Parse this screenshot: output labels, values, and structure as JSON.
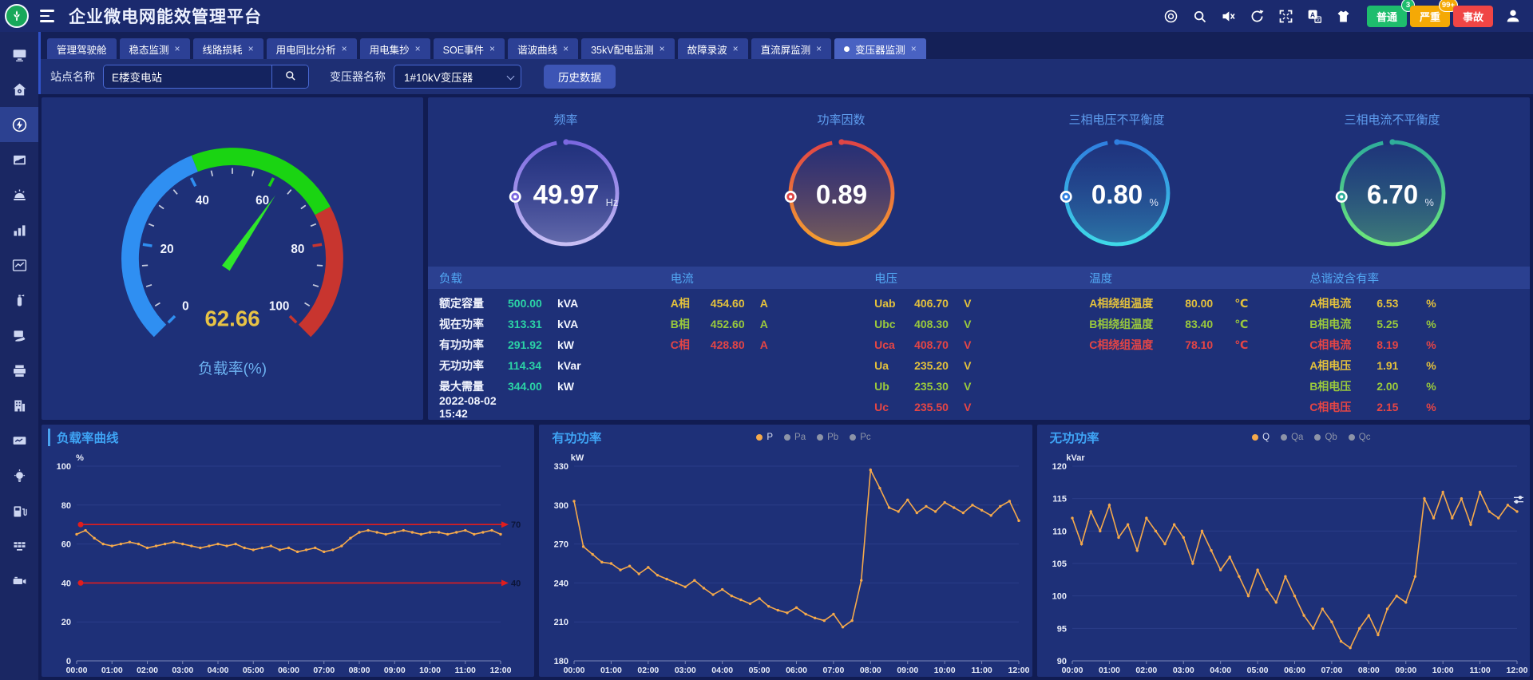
{
  "header": {
    "title": "企业微电网能效管理平台",
    "icons": [
      "at-circle",
      "search",
      "mute",
      "refresh",
      "fullscreen",
      "translate",
      "shirt"
    ],
    "status_buttons": [
      {
        "label": "普通",
        "badge": "3",
        "color": "#1ebd6d",
        "badge_color": "#1ebd6d"
      },
      {
        "label": "严重",
        "badge": "99+",
        "color": "#f5a905",
        "badge_color": "#f5a905"
      },
      {
        "label": "事故",
        "badge": "",
        "color": "#f04545",
        "badge_color": ""
      }
    ]
  },
  "ui": {
    "close_glyph": "×"
  },
  "sidebar": {
    "active_index": 2,
    "items": [
      "screen",
      "home",
      "energy",
      "report",
      "alarm",
      "bar-chart",
      "trend",
      "extinguisher",
      "card",
      "printer",
      "building",
      "monitor-trend",
      "bulb",
      "charger",
      "grid",
      "camera"
    ]
  },
  "tabs": [
    {
      "label": "管理驾驶舱",
      "closable": false,
      "active": false
    },
    {
      "label": "稳态监测",
      "closable": true,
      "active": false
    },
    {
      "label": "线路损耗",
      "closable": true,
      "active": false
    },
    {
      "label": "用电同比分析",
      "closable": true,
      "active": false
    },
    {
      "label": "用电集抄",
      "closable": true,
      "active": false
    },
    {
      "label": "SOE事件",
      "closable": true,
      "active": false
    },
    {
      "label": "谐波曲线",
      "closable": true,
      "active": false
    },
    {
      "label": "35kV配电监测",
      "closable": true,
      "active": false
    },
    {
      "label": "故障录波",
      "closable": true,
      "active": false
    },
    {
      "label": "直流屏监测",
      "closable": true,
      "active": false
    },
    {
      "label": "变压器监测",
      "closable": true,
      "active": true
    }
  ],
  "filters": {
    "site_label": "站点名称",
    "site_value": "E楼变电站",
    "transformer_label": "变压器名称",
    "transformer_value": "1#10kV变压器",
    "history_button": "历史数据"
  },
  "load_gauge": {
    "value": 62.66,
    "display_value": "62.66",
    "label": "负载率(%)",
    "min": 0,
    "max": 100,
    "ticks": [
      0,
      20,
      40,
      60,
      80,
      100
    ],
    "segments": [
      {
        "to": 42,
        "color": "#2f8ff2"
      },
      {
        "to": 73,
        "color": "#1ad412"
      },
      {
        "to": 100,
        "color": "#c8352f"
      }
    ],
    "needle_color": "#2ee62a",
    "value_color": "#e8c345"
  },
  "ring_gauges": [
    {
      "title": "频率",
      "value": "49.97",
      "unit": "Hz",
      "color1": "#7b68e0",
      "color2": "#c8bff5"
    },
    {
      "title": "功率因数",
      "value": "0.89",
      "unit": "",
      "color1": "#e04545",
      "color2": "#f5a030"
    },
    {
      "title": "三相电压不平衡度",
      "value": "0.80",
      "unit": "%",
      "color1": "#2f7fe0",
      "color2": "#3fd9e8"
    },
    {
      "title": "三相电流不平衡度",
      "value": "6.70",
      "unit": "%",
      "color1": "#2fae9a",
      "color2": "#6ee87a"
    }
  ],
  "table": {
    "headers": [
      "负载",
      "电流",
      "电压",
      "温度",
      "总谐波含有率"
    ],
    "columns": [
      {
        "rows": [
          {
            "label": "额定容量",
            "value": "500.00",
            "unit": "kVA",
            "tone": "teal"
          },
          {
            "label": "视在功率",
            "value": "313.31",
            "unit": "kVA",
            "tone": "teal"
          },
          {
            "label": "有功功率",
            "value": "291.92",
            "unit": "kW",
            "tone": "teal"
          },
          {
            "label": "无功功率",
            "value": "114.34",
            "unit": "kVar",
            "tone": "teal"
          },
          {
            "label": "最大需量",
            "value": "344.00",
            "unit": "kW",
            "tone": "teal"
          },
          {
            "label": "2022-08-02 15:42",
            "value": "",
            "unit": "",
            "tone": "white"
          }
        ]
      },
      {
        "rows": [
          {
            "label": "A相",
            "value": "454.60",
            "unit": "A",
            "tone": "yellow"
          },
          {
            "label": "B相",
            "value": "452.60",
            "unit": "A",
            "tone": "green"
          },
          {
            "label": "C相",
            "value": "428.80",
            "unit": "A",
            "tone": "red"
          }
        ]
      },
      {
        "rows": [
          {
            "label": "Uab",
            "value": "406.70",
            "unit": "V",
            "tone": "yellow"
          },
          {
            "label": "Ubc",
            "value": "408.30",
            "unit": "V",
            "tone": "green"
          },
          {
            "label": "Uca",
            "value": "408.70",
            "unit": "V",
            "tone": "red"
          },
          {
            "label": "Ua",
            "value": "235.20",
            "unit": "V",
            "tone": "yellow"
          },
          {
            "label": "Ub",
            "value": "235.30",
            "unit": "V",
            "tone": "green"
          },
          {
            "label": "Uc",
            "value": "235.50",
            "unit": "V",
            "tone": "red"
          }
        ]
      },
      {
        "rows": [
          {
            "label": "A相绕组温度",
            "value": "80.00",
            "unit": "℃",
            "tone": "yellow"
          },
          {
            "label": "B相绕组温度",
            "value": "83.40",
            "unit": "℃",
            "tone": "green"
          },
          {
            "label": "C相绕组温度",
            "value": "78.10",
            "unit": "℃",
            "tone": "red"
          }
        ]
      },
      {
        "rows": [
          {
            "label": "A相电流",
            "value": "6.53",
            "unit": "%",
            "tone": "yellow"
          },
          {
            "label": "B相电流",
            "value": "5.25",
            "unit": "%",
            "tone": "green"
          },
          {
            "label": "C相电流",
            "value": "8.19",
            "unit": "%",
            "tone": "red"
          },
          {
            "label": "A相电压",
            "value": "1.91",
            "unit": "%",
            "tone": "yellow"
          },
          {
            "label": "B相电压",
            "value": "2.00",
            "unit": "%",
            "tone": "green"
          },
          {
            "label": "C相电压",
            "value": "2.15",
            "unit": "%",
            "tone": "red"
          }
        ]
      }
    ]
  },
  "chart_data": [
    {
      "type": "line",
      "title": "负载率曲线",
      "ylabel": "%",
      "ylim": [
        0,
        100
      ],
      "yticks": [
        0,
        20,
        40,
        60,
        80,
        100
      ],
      "x_labels": [
        "00:00",
        "01:00",
        "02:00",
        "03:00",
        "04:00",
        "05:00",
        "06:00",
        "07:00",
        "08:00",
        "09:00",
        "10:00",
        "11:00",
        "12:00"
      ],
      "series": [
        {
          "name": "负载率",
          "color": "#f5a94b",
          "values": [
            65,
            67,
            63,
            60,
            59,
            60,
            61,
            60,
            58,
            59,
            60,
            61,
            60,
            59,
            58,
            59,
            60,
            59,
            60,
            58,
            57,
            58,
            59,
            57,
            58,
            56,
            57,
            58,
            56,
            57,
            59,
            63,
            66,
            67,
            66,
            65,
            66,
            67,
            66,
            65,
            66,
            66,
            65,
            66,
            67,
            65,
            66,
            67,
            65
          ]
        }
      ],
      "thresholds": [
        {
          "value": 70,
          "color": "#e11d1d",
          "label": "70"
        },
        {
          "value": 40,
          "color": "#e11d1d",
          "label": "40"
        }
      ],
      "legend": []
    },
    {
      "type": "line",
      "title": "有功功率",
      "ylabel": "kW",
      "ylim": [
        180,
        330
      ],
      "yticks": [
        180,
        210,
        240,
        270,
        300,
        330
      ],
      "x_labels": [
        "00:00",
        "01:00",
        "02:00",
        "03:00",
        "04:00",
        "05:00",
        "06:00",
        "07:00",
        "08:00",
        "09:00",
        "10:00",
        "11:00",
        "12:00"
      ],
      "series": [
        {
          "name": "P",
          "color": "#f5a94b",
          "values": [
            303,
            268,
            262,
            256,
            255,
            250,
            253,
            247,
            252,
            246,
            243,
            240,
            237,
            242,
            236,
            231,
            235,
            230,
            227,
            224,
            228,
            222,
            219,
            217,
            221,
            216,
            213,
            211,
            216,
            206,
            211,
            242,
            327,
            313,
            298,
            295,
            304,
            294,
            299,
            295,
            302,
            298,
            294,
            300,
            296,
            292,
            299,
            303,
            288
          ]
        }
      ],
      "thresholds": [],
      "legend": [
        {
          "label": "P",
          "active": true
        },
        {
          "label": "Pa",
          "active": false
        },
        {
          "label": "Pb",
          "active": false
        },
        {
          "label": "Pc",
          "active": false
        }
      ]
    },
    {
      "type": "line",
      "title": "无功功率",
      "ylabel": "kVar",
      "ylim": [
        90,
        120
      ],
      "yticks": [
        90,
        95,
        100,
        105,
        110,
        115,
        120
      ],
      "x_labels": [
        "00:00",
        "01:00",
        "02:00",
        "03:00",
        "04:00",
        "05:00",
        "06:00",
        "07:00",
        "08:00",
        "09:00",
        "10:00",
        "11:00",
        "12:00"
      ],
      "series": [
        {
          "name": "Q",
          "color": "#f5a94b",
          "values": [
            112,
            108,
            113,
            110,
            114,
            109,
            111,
            107,
            112,
            110,
            108,
            111,
            109,
            105,
            110,
            107,
            104,
            106,
            103,
            100,
            104,
            101,
            99,
            103,
            100,
            97,
            95,
            98,
            96,
            93,
            92,
            95,
            97,
            94,
            98,
            100,
            99,
            103,
            115,
            112,
            116,
            112,
            115,
            111,
            116,
            113,
            112,
            114,
            113
          ]
        }
      ],
      "thresholds": [],
      "legend": [
        {
          "label": "Q",
          "active": true
        },
        {
          "label": "Qa",
          "active": false
        },
        {
          "label": "Qb",
          "active": false
        },
        {
          "label": "Qc",
          "active": false
        }
      ]
    }
  ]
}
